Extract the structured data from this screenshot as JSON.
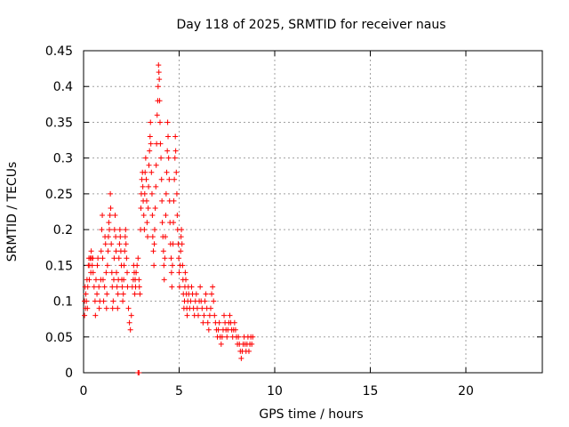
{
  "chart_data": {
    "type": "scatter",
    "title": "Day 118 of 2025, SRMTID for receiver naus",
    "xlabel": "GPS time / hours",
    "ylabel": "SRMTID / TECUs",
    "xlim": [
      0,
      24
    ],
    "ylim": [
      0,
      0.45
    ],
    "xticks": [
      0,
      5,
      10,
      15,
      20
    ],
    "xtick_labels": [
      "0",
      "5",
      "10",
      "15",
      "20"
    ],
    "yticks": [
      0,
      0.05,
      0.1,
      0.15,
      0.2,
      0.25,
      0.3,
      0.35,
      0.4,
      0.45
    ],
    "ytick_labels": [
      "0",
      "0.05",
      "0.1",
      "0.15",
      "0.2",
      "0.25",
      "0.3",
      "0.35",
      "0.4",
      "0.45"
    ],
    "grid": true,
    "marker": "plus",
    "marker_color": "#ff0000",
    "series": [
      {
        "points": [
          [
            0.05,
            0.08
          ],
          [
            0.05,
            0.1
          ],
          [
            0.08,
            0.12
          ],
          [
            0.1,
            0.09
          ],
          [
            0.12,
            0.11
          ],
          [
            0.15,
            0.1
          ],
          [
            0.18,
            0.13
          ],
          [
            0.2,
            0.09
          ],
          [
            0.22,
            0.12
          ],
          [
            0.25,
            0.15
          ],
          [
            0.28,
            0.16
          ],
          [
            0.3,
            0.13
          ],
          [
            0.32,
            0.15
          ],
          [
            0.35,
            0.16
          ],
          [
            0.38,
            0.14
          ],
          [
            0.4,
            0.17
          ],
          [
            0.42,
            0.16
          ],
          [
            0.45,
            0.15
          ],
          [
            0.48,
            0.16
          ],
          [
            0.5,
            0.14
          ],
          [
            0.55,
            0.12
          ],
          [
            0.6,
            0.1
          ],
          [
            0.62,
            0.08
          ],
          [
            0.65,
            0.13
          ],
          [
            0.7,
            0.11
          ],
          [
            0.72,
            0.15
          ],
          [
            0.75,
            0.16
          ],
          [
            0.8,
            0.12
          ],
          [
            0.82,
            0.09
          ],
          [
            0.85,
            0.1
          ],
          [
            0.9,
            0.13
          ],
          [
            0.92,
            0.17
          ],
          [
            0.95,
            0.2
          ],
          [
            0.98,
            0.22
          ],
          [
            1.0,
            0.16
          ],
          [
            1.02,
            0.13
          ],
          [
            1.05,
            0.1
          ],
          [
            1.1,
            0.12
          ],
          [
            1.12,
            0.19
          ],
          [
            1.15,
            0.18
          ],
          [
            1.18,
            0.14
          ],
          [
            1.2,
            0.09
          ],
          [
            1.22,
            0.11
          ],
          [
            1.25,
            0.15
          ],
          [
            1.28,
            0.17
          ],
          [
            1.3,
            0.19
          ],
          [
            1.32,
            0.21
          ],
          [
            1.35,
            0.2
          ],
          [
            1.38,
            0.22
          ],
          [
            1.4,
            0.25
          ],
          [
            1.42,
            0.23
          ],
          [
            1.45,
            0.18
          ],
          [
            1.48,
            0.14
          ],
          [
            1.5,
            0.12
          ],
          [
            1.52,
            0.09
          ],
          [
            1.55,
            0.1
          ],
          [
            1.58,
            0.13
          ],
          [
            1.6,
            0.16
          ],
          [
            1.62,
            0.2
          ],
          [
            1.65,
            0.22
          ],
          [
            1.68,
            0.19
          ],
          [
            1.7,
            0.17
          ],
          [
            1.72,
            0.14
          ],
          [
            1.75,
            0.12
          ],
          [
            1.78,
            0.09
          ],
          [
            1.8,
            0.11
          ],
          [
            1.82,
            0.13
          ],
          [
            1.85,
            0.16
          ],
          [
            1.88,
            0.18
          ],
          [
            1.9,
            0.2
          ],
          [
            1.92,
            0.19
          ],
          [
            1.95,
            0.17
          ],
          [
            1.98,
            0.15
          ],
          [
            2.0,
            0.13
          ],
          [
            2.02,
            0.12
          ],
          [
            2.05,
            0.1
          ],
          [
            2.08,
            0.11
          ],
          [
            2.1,
            0.13
          ],
          [
            2.12,
            0.15
          ],
          [
            2.15,
            0.17
          ],
          [
            2.18,
            0.19
          ],
          [
            2.2,
            0.2
          ],
          [
            2.22,
            0.18
          ],
          [
            2.25,
            0.16
          ],
          [
            2.28,
            0.14
          ],
          [
            2.3,
            0.12
          ],
          [
            2.35,
            0.09
          ],
          [
            2.4,
            0.07
          ],
          [
            2.45,
            0.06
          ],
          [
            2.5,
            0.08
          ],
          [
            2.55,
            0.12
          ],
          [
            2.6,
            0.13
          ],
          [
            2.62,
            0.15
          ],
          [
            2.65,
            0.14
          ],
          [
            2.68,
            0.11
          ],
          [
            2.7,
            0.13
          ],
          [
            2.72,
            0.12
          ],
          [
            2.75,
            0.14
          ],
          [
            2.8,
            0.15
          ],
          [
            2.85,
            0.16
          ],
          [
            2.9,
            0.13
          ],
          [
            2.92,
            0.12
          ],
          [
            2.95,
            0.11
          ],
          [
            2.98,
            0.2
          ],
          [
            3.0,
            0.23
          ],
          [
            3.02,
            0.25
          ],
          [
            3.05,
            0.27
          ],
          [
            3.08,
            0.28
          ],
          [
            3.1,
            0.26
          ],
          [
            3.12,
            0.24
          ],
          [
            3.15,
            0.22
          ],
          [
            3.18,
            0.2
          ],
          [
            3.2,
            0.25
          ],
          [
            3.22,
            0.28
          ],
          [
            3.25,
            0.3
          ],
          [
            3.28,
            0.27
          ],
          [
            3.3,
            0.24
          ],
          [
            3.32,
            0.21
          ],
          [
            3.35,
            0.19
          ],
          [
            3.38,
            0.23
          ],
          [
            3.4,
            0.26
          ],
          [
            3.42,
            0.29
          ],
          [
            3.45,
            0.31
          ],
          [
            3.48,
            0.33
          ],
          [
            3.5,
            0.35
          ],
          [
            3.52,
            0.32
          ],
          [
            3.55,
            0.28
          ],
          [
            3.58,
            0.25
          ],
          [
            3.6,
            0.22
          ],
          [
            3.62,
            0.19
          ],
          [
            3.65,
            0.17
          ],
          [
            3.68,
            0.15
          ],
          [
            3.7,
            0.18
          ],
          [
            3.72,
            0.2
          ],
          [
            3.75,
            0.23
          ],
          [
            3.78,
            0.26
          ],
          [
            3.8,
            0.29
          ],
          [
            3.82,
            0.32
          ],
          [
            3.85,
            0.36
          ],
          [
            3.88,
            0.38
          ],
          [
            3.9,
            0.4
          ],
          [
            3.92,
            0.43
          ],
          [
            3.94,
            0.42
          ],
          [
            3.96,
            0.41
          ],
          [
            3.98,
            0.38
          ],
          [
            4.0,
            0.35
          ],
          [
            4.02,
            0.32
          ],
          [
            4.05,
            0.3
          ],
          [
            4.08,
            0.27
          ],
          [
            4.1,
            0.24
          ],
          [
            4.12,
            0.21
          ],
          [
            4.15,
            0.19
          ],
          [
            4.18,
            0.17
          ],
          [
            4.2,
            0.15
          ],
          [
            4.22,
            0.13
          ],
          [
            4.25,
            0.16
          ],
          [
            4.28,
            0.19
          ],
          [
            4.3,
            0.22
          ],
          [
            4.32,
            0.25
          ],
          [
            4.35,
            0.28
          ],
          [
            4.38,
            0.31
          ],
          [
            4.4,
            0.35
          ],
          [
            4.42,
            0.33
          ],
          [
            4.45,
            0.3
          ],
          [
            4.48,
            0.27
          ],
          [
            4.5,
            0.24
          ],
          [
            4.52,
            0.21
          ],
          [
            4.55,
            0.18
          ],
          [
            4.58,
            0.16
          ],
          [
            4.6,
            0.14
          ],
          [
            4.62,
            0.12
          ],
          [
            4.65,
            0.15
          ],
          [
            4.68,
            0.18
          ],
          [
            4.7,
            0.21
          ],
          [
            4.72,
            0.24
          ],
          [
            4.75,
            0.27
          ],
          [
            4.78,
            0.3
          ],
          [
            4.8,
            0.33
          ],
          [
            4.82,
            0.31
          ],
          [
            4.85,
            0.28
          ],
          [
            4.88,
            0.25
          ],
          [
            4.9,
            0.22
          ],
          [
            4.92,
            0.2
          ],
          [
            4.95,
            0.18
          ],
          [
            4.98,
            0.16
          ],
          [
            5.0,
            0.14
          ],
          [
            5.02,
            0.12
          ],
          [
            5.05,
            0.15
          ],
          [
            5.08,
            0.17
          ],
          [
            5.1,
            0.19
          ],
          [
            5.12,
            0.2
          ],
          [
            5.15,
            0.18
          ],
          [
            5.18,
            0.15
          ],
          [
            5.2,
            0.13
          ],
          [
            5.22,
            0.11
          ],
          [
            5.25,
            0.09
          ],
          [
            5.28,
            0.1
          ],
          [
            5.3,
            0.12
          ],
          [
            5.32,
            0.14
          ],
          [
            5.35,
            0.13
          ],
          [
            5.38,
            0.11
          ],
          [
            5.4,
            0.09
          ],
          [
            5.42,
            0.08
          ],
          [
            5.45,
            0.1
          ],
          [
            5.48,
            0.12
          ],
          [
            5.5,
            0.11
          ],
          [
            5.55,
            0.09
          ],
          [
            5.6,
            0.1
          ],
          [
            5.65,
            0.12
          ],
          [
            5.7,
            0.11
          ],
          [
            5.75,
            0.09
          ],
          [
            5.8,
            0.08
          ],
          [
            5.85,
            0.1
          ],
          [
            5.9,
            0.11
          ],
          [
            5.95,
            0.09
          ],
          [
            6.0,
            0.08
          ],
          [
            6.05,
            0.1
          ],
          [
            6.1,
            0.12
          ],
          [
            6.15,
            0.1
          ],
          [
            6.2,
            0.09
          ],
          [
            6.25,
            0.07
          ],
          [
            6.3,
            0.08
          ],
          [
            6.35,
            0.1
          ],
          [
            6.4,
            0.11
          ],
          [
            6.45,
            0.09
          ],
          [
            6.5,
            0.07
          ],
          [
            6.55,
            0.06
          ],
          [
            6.6,
            0.08
          ],
          [
            6.65,
            0.09
          ],
          [
            6.7,
            0.11
          ],
          [
            6.75,
            0.12
          ],
          [
            6.8,
            0.1
          ],
          [
            6.85,
            0.08
          ],
          [
            6.9,
            0.07
          ],
          [
            6.95,
            0.06
          ],
          [
            7.0,
            0.05
          ],
          [
            7.05,
            0.06
          ],
          [
            7.1,
            0.07
          ],
          [
            7.15,
            0.05
          ],
          [
            7.2,
            0.04
          ],
          [
            7.25,
            0.05
          ],
          [
            7.3,
            0.06
          ],
          [
            7.35,
            0.08
          ],
          [
            7.4,
            0.07
          ],
          [
            7.45,
            0.06
          ],
          [
            7.5,
            0.05
          ],
          [
            7.55,
            0.06
          ],
          [
            7.6,
            0.07
          ],
          [
            7.65,
            0.08
          ],
          [
            7.7,
            0.07
          ],
          [
            7.75,
            0.06
          ],
          [
            7.8,
            0.05
          ],
          [
            7.85,
            0.06
          ],
          [
            7.9,
            0.07
          ],
          [
            7.95,
            0.06
          ],
          [
            8.0,
            0.05
          ],
          [
            8.05,
            0.04
          ],
          [
            8.1,
            0.05
          ],
          [
            8.15,
            0.04
          ],
          [
            8.2,
            0.03
          ],
          [
            8.25,
            0.02
          ],
          [
            8.3,
            0.03
          ],
          [
            8.35,
            0.04
          ],
          [
            8.4,
            0.05
          ],
          [
            8.45,
            0.04
          ],
          [
            8.5,
            0.03
          ],
          [
            8.55,
            0.04
          ],
          [
            8.6,
            0.05
          ],
          [
            8.65,
            0.03
          ],
          [
            8.7,
            0.04
          ],
          [
            8.75,
            0.05
          ],
          [
            8.8,
            0.04
          ],
          [
            8.85,
            0.05
          ],
          [
            2.85,
            0.0
          ],
          [
            2.9,
            0.0
          ]
        ]
      }
    ]
  }
}
